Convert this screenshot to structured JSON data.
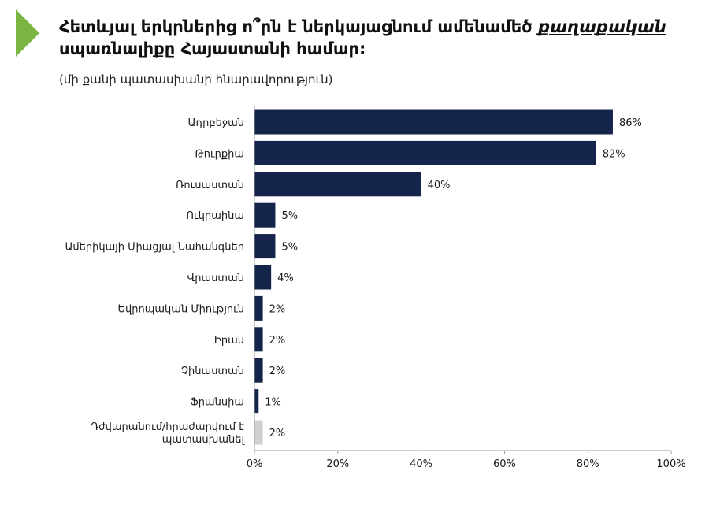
{
  "colors": {
    "accent": "#7ab441",
    "bar": "#14244a",
    "bar_other": "#d0d0d0"
  },
  "title": {
    "part1": "Հետևյալ երկրներից ո՞րն է ներկայացնում ամենամեծ ",
    "emphasis": "քաղաքական",
    "part2": " սպառնալիքը Հայաստանի համար:"
  },
  "subtitle": "(մի քանի պատասխանի հնարավորություն)",
  "chart_data": {
    "type": "bar",
    "orientation": "horizontal",
    "categories": [
      "Ադրբեջան",
      "Թուրքիա",
      "Ռուսաստան",
      "Ուկրաինա",
      "Ամերիկայի Միացյալ Նահանգներ",
      "Վրաստան",
      "Եվրոպական Միություն",
      "Իրան",
      "Չինաստան",
      "Ֆրանսիա",
      "Դժվարանում/հրաժարվում է պատասխանել"
    ],
    "category_lines": [
      [
        "Ադրբեջան"
      ],
      [
        "Թուրքիա"
      ],
      [
        "Ռուսաստան"
      ],
      [
        "Ուկրաինա"
      ],
      [
        "Ամերիկայի Միացյալ Նահանգներ"
      ],
      [
        "Վրաստան"
      ],
      [
        "Եվրոպական Միություն"
      ],
      [
        "Իրան"
      ],
      [
        "Չինաստան"
      ],
      [
        "Ֆրանսիա"
      ],
      [
        "Դժվարանում/հրաժարվում է",
        "պատասխանել"
      ]
    ],
    "values": [
      86,
      82,
      40,
      5,
      5,
      4,
      2,
      2,
      2,
      1,
      2
    ],
    "value_labels": [
      "86%",
      "82%",
      "40%",
      "5%",
      "5%",
      "4%",
      "2%",
      "2%",
      "2%",
      "1%",
      "2%"
    ],
    "bar_colors": [
      "#14244a",
      "#14244a",
      "#14244a",
      "#14244a",
      "#14244a",
      "#14244a",
      "#14244a",
      "#14244a",
      "#14244a",
      "#14244a",
      "#d0d0d0"
    ],
    "xlim": [
      0,
      100
    ],
    "xticks": [
      0,
      20,
      40,
      60,
      80,
      100
    ],
    "xtick_labels": [
      "0%",
      "20%",
      "40%",
      "60%",
      "80%",
      "100%"
    ],
    "grid": false
  }
}
